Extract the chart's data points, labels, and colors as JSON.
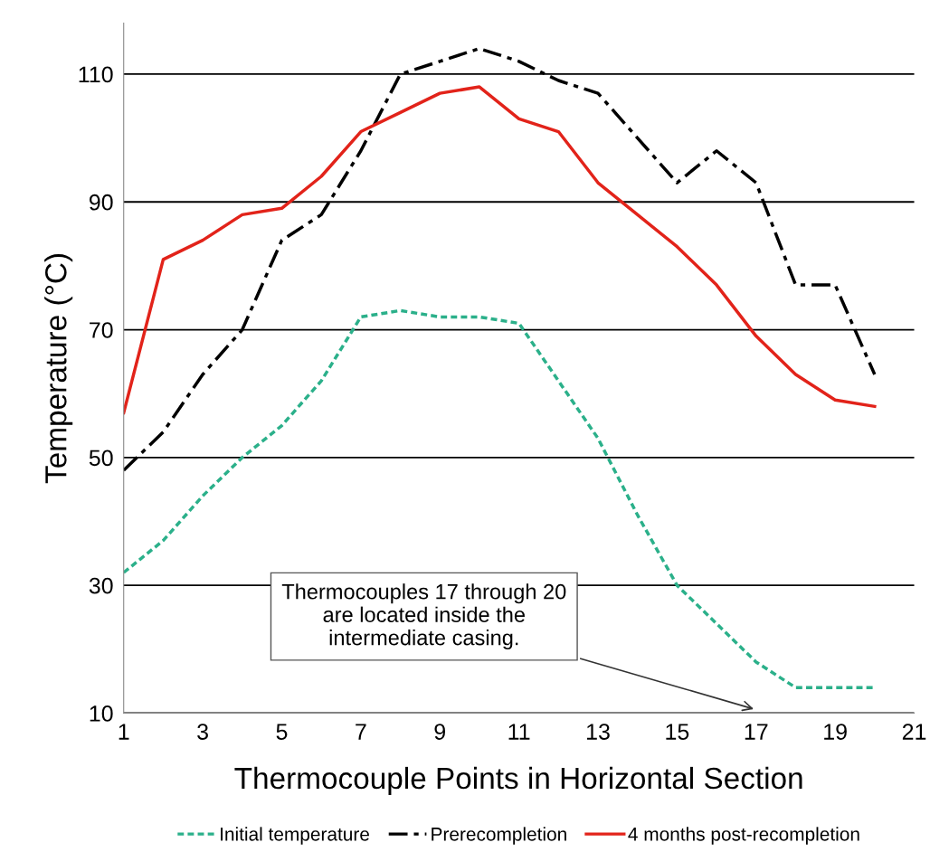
{
  "chart_data": {
    "type": "line",
    "xlabel": "Thermocouple Points in Horizontal Section",
    "ylabel": "Temperature (°C)",
    "x": [
      1,
      2,
      3,
      4,
      5,
      6,
      7,
      8,
      9,
      10,
      11,
      12,
      13,
      14,
      15,
      16,
      17,
      18,
      19,
      20
    ],
    "series": [
      {
        "name": "Initial temperature",
        "color": "#2bb08a",
        "line_style": "dotted",
        "values": [
          32,
          37,
          44,
          50,
          55,
          62,
          72,
          73,
          72,
          72,
          71,
          62,
          53,
          41,
          30,
          24,
          18,
          14,
          14,
          14
        ]
      },
      {
        "name": "Prerecompletion",
        "color": "#000000",
        "line_style": "dashdot",
        "values": [
          48,
          54,
          63,
          70,
          84,
          88,
          98,
          110,
          112,
          114,
          112,
          109,
          107,
          100,
          93,
          98,
          93,
          77,
          77,
          63
        ]
      },
      {
        "name": "4 months post-recompletion",
        "color": "#e2231a",
        "line_style": "solid",
        "values": [
          57,
          81,
          84,
          88,
          89,
          94,
          101,
          104,
          107,
          108,
          103,
          101,
          93,
          88,
          83,
          77,
          69,
          63,
          59,
          58
        ]
      }
    ],
    "xlim": [
      1,
      21
    ],
    "xticks": [
      1,
      3,
      5,
      7,
      9,
      11,
      13,
      15,
      17,
      19,
      21
    ],
    "ylim": [
      10,
      118
    ],
    "yticks": [
      10,
      30,
      50,
      70,
      90,
      110
    ],
    "grid": "y",
    "legend": "bottom",
    "annotations": [
      "Thermocouples 17 through 20\nare located inside the\nintermediate casing."
    ]
  }
}
